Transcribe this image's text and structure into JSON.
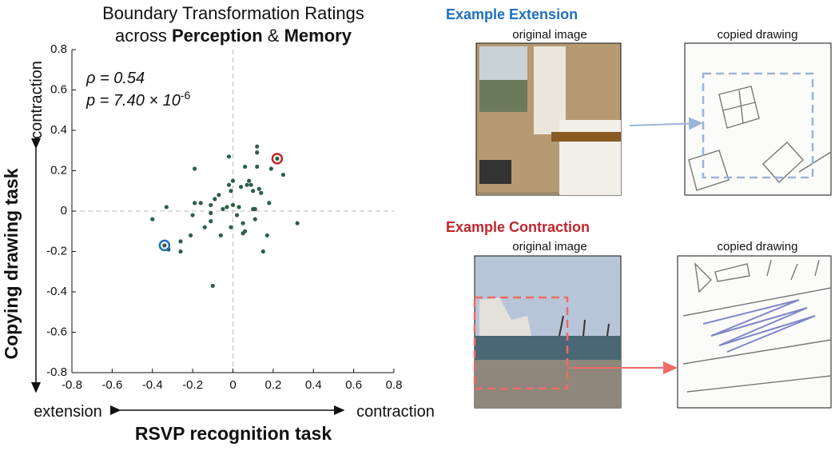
{
  "chart_data": {
    "type": "scatter",
    "title": {
      "line1": "Boundary Transformation Ratings",
      "pre": "across ",
      "bold1": "Perception",
      "mid": " & ",
      "bold2": "Memory"
    },
    "annotations": {
      "rho": "ρ = 0.54",
      "p": "p = 7.40 × 10",
      "p_exp": "-6"
    },
    "x_label": "RSVP recognition task",
    "y_label": "Copying drawing task",
    "x_low": "extension",
    "x_high": "contraction",
    "y_high": "contraction",
    "xlim": [
      -0.8,
      0.8
    ],
    "ylim": [
      -0.8,
      0.8
    ],
    "xticks": [
      -0.8,
      -0.6,
      -0.4,
      -0.2,
      0,
      0.2,
      0.4,
      0.6,
      0.8
    ],
    "yticks": [
      -0.8,
      -0.6,
      -0.4,
      -0.2,
      0,
      0.2,
      0.4,
      0.6,
      0.8
    ],
    "color": "#2e5e46",
    "x": [
      -0.4,
      -0.33,
      -0.34,
      -0.32,
      -0.26,
      -0.26,
      -0.21,
      -0.19,
      -0.19,
      -0.16,
      -0.2,
      -0.14,
      -0.11,
      -0.11,
      -0.11,
      -0.09,
      -0.07,
      -0.05,
      -0.06,
      -0.1,
      -0.03,
      -0.02,
      -0.02,
      -0.01,
      0.0,
      0.0,
      -0.01,
      0.02,
      0.03,
      0.04,
      0.05,
      0.05,
      0.06,
      0.06,
      0.07,
      0.09,
      0.1,
      0.1,
      0.11,
      0.12,
      0.12,
      0.12,
      0.13,
      0.14,
      0.11,
      0.15,
      0.17,
      0.18,
      0.19,
      0.22,
      0.25,
      0.32,
      0.08
    ],
    "values": [
      -0.04,
      0.02,
      -0.17,
      -0.19,
      -0.15,
      -0.2,
      -0.12,
      0.21,
      0.04,
      0.04,
      -0.02,
      -0.08,
      -0.01,
      -0.05,
      0.03,
      0.06,
      0.08,
      0.01,
      -0.12,
      -0.37,
      0.02,
      0.27,
      0.13,
      0.1,
      0.15,
      0.03,
      -0.08,
      -0.02,
      0.02,
      0.12,
      -0.06,
      -0.11,
      -0.1,
      0.22,
      0.13,
      0.13,
      0.1,
      0.01,
      0.01,
      0.32,
      0.29,
      0.22,
      0.11,
      0.09,
      -0.04,
      -0.2,
      -0.12,
      0.04,
      0.21,
      0.26,
      0.18,
      -0.06,
      0.15
    ],
    "rings": [
      {
        "index": 2,
        "color": "#1f6fbf"
      },
      {
        "index": 49,
        "color": "#c0272d"
      }
    ]
  },
  "panels": {
    "extension": {
      "title": "Example Extension",
      "original": "original image",
      "copied": "copied drawing"
    },
    "contraction": {
      "title": "Example Contraction",
      "original": "original image",
      "copied": "copied drawing"
    }
  }
}
